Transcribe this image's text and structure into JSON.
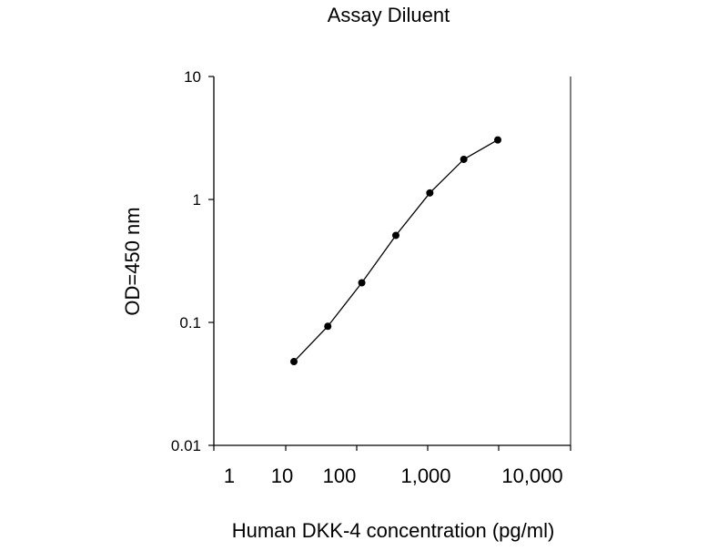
{
  "chart_data": {
    "type": "line",
    "title": "Assay Diluent",
    "xlabel": "Human DKK-4 concentration (pg/ml)",
    "ylabel": "OD=450 nm",
    "x_scale": "log",
    "y_scale": "log",
    "xlim": [
      1,
      10000
    ],
    "ylim": [
      0.01,
      10
    ],
    "x_ticks": [
      {
        "value": 1,
        "label": "1"
      },
      {
        "value": 10,
        "label": "10"
      },
      {
        "value": 100,
        "label": "100"
      },
      {
        "value": 1000,
        "label": "1,000"
      },
      {
        "value": 10000,
        "label": "10,000"
      }
    ],
    "y_ticks": [
      {
        "value": 0.01,
        "label": "0.01"
      },
      {
        "value": 0.1,
        "label": "0.1"
      },
      {
        "value": 1,
        "label": "1"
      },
      {
        "value": 10,
        "label": "10"
      }
    ],
    "grid": false,
    "legend": "none",
    "series": [
      {
        "x": [
          13.7,
          41,
          123,
          370,
          1111,
          3333,
          10000
        ],
        "y": [
          0.048,
          0.093,
          0.21,
          0.51,
          1.13,
          2.12,
          3.05
        ]
      }
    ],
    "colors": {
      "line": "#000000",
      "marker": "#000000",
      "axis": "#000000"
    }
  }
}
